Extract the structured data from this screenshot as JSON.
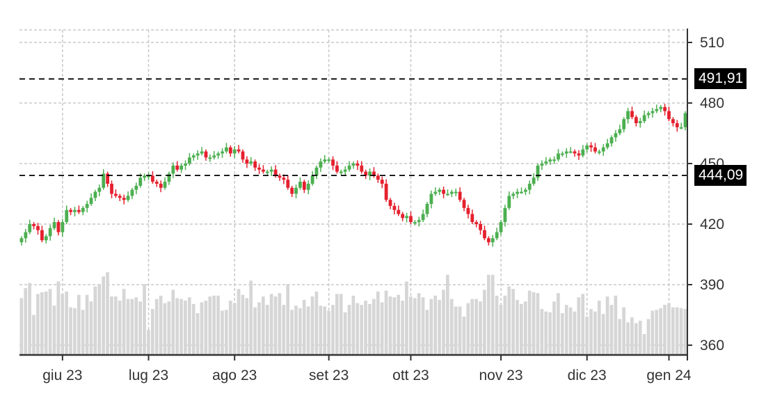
{
  "chart_data": {
    "type": "candlestick",
    "title": "",
    "xlabel": "",
    "ylabel": "",
    "ylim": [
      351,
      517
    ],
    "y_ticks": [
      360,
      390,
      420,
      450,
      480,
      510
    ],
    "x_ticks": [
      {
        "label": "giu 23",
        "index": 10
      },
      {
        "label": "lug 23",
        "index": 31
      },
      {
        "label": "ago 23",
        "index": 52
      },
      {
        "label": "set 23",
        "index": 75
      },
      {
        "label": "ott 23",
        "index": 95
      },
      {
        "label": "nov 23",
        "index": 117
      },
      {
        "label": "dic 23",
        "index": 138
      },
      {
        "label": "gen 24",
        "index": 158
      }
    ],
    "grid": true,
    "reference_lines": [
      {
        "value": 491.91,
        "label": "491,91",
        "style": "dashed",
        "color": "#000000"
      },
      {
        "value": 444.09,
        "label": "444,09",
        "style": "dashed",
        "color": "#000000"
      }
    ],
    "colors": {
      "up": "#4caf50",
      "down": "#e5202e",
      "volume": "#d6d6d6",
      "grid": "#c8c8c8",
      "axis": "#333333"
    },
    "closes": [
      413,
      416,
      420,
      419,
      417,
      412,
      414,
      418,
      421,
      416,
      421,
      427,
      426,
      427,
      426,
      428,
      430,
      433,
      436,
      438,
      445,
      440,
      435,
      434,
      433,
      432,
      434,
      437,
      439,
      443,
      444,
      444,
      441,
      440,
      438,
      441,
      445,
      449,
      447,
      449,
      450,
      453,
      454,
      455,
      456,
      453,
      453,
      454,
      455,
      456,
      458,
      455,
      457,
      456,
      452,
      450,
      451,
      448,
      447,
      446,
      446,
      447,
      444,
      443,
      442,
      438,
      435,
      438,
      441,
      437,
      440,
      444,
      448,
      451,
      452,
      452,
      449,
      446,
      446,
      447,
      449,
      450,
      449,
      446,
      444,
      446,
      444,
      442,
      440,
      432,
      429,
      427,
      425,
      423,
      424,
      421,
      421,
      422,
      425,
      430,
      435,
      436,
      437,
      435,
      435,
      436,
      436,
      432,
      428,
      425,
      421,
      420,
      417,
      413,
      411,
      413,
      416,
      421,
      428,
      434,
      435,
      436,
      436,
      437,
      440,
      443,
      449,
      450,
      451,
      452,
      452,
      455,
      455,
      456,
      456,
      455,
      454,
      457,
      459,
      458,
      456,
      456,
      458,
      460,
      463,
      465,
      467,
      472,
      476,
      473,
      470,
      471,
      474,
      475,
      476,
      477,
      478,
      476,
      472,
      470,
      468,
      468,
      475
    ],
    "volume_heights": [
      68,
      80,
      86,
      48,
      73,
      75,
      76,
      79,
      59,
      88,
      73,
      76,
      57,
      56,
      72,
      54,
      72,
      64,
      82,
      85,
      94,
      99,
      70,
      70,
      65,
      79,
      67,
      67,
      69,
      64,
      85,
      30,
      55,
      67,
      71,
      62,
      64,
      78,
      68,
      67,
      65,
      69,
      61,
      50,
      63,
      65,
      70,
      71,
      71,
      53,
      54,
      65,
      62,
      79,
      72,
      68,
      89,
      57,
      63,
      70,
      60,
      73,
      70,
      74,
      60,
      85,
      54,
      59,
      56,
      66,
      58,
      70,
      76,
      59,
      58,
      53,
      60,
      73,
      73,
      51,
      60,
      71,
      62,
      60,
      65,
      61,
      67,
      76,
      63,
      77,
      70,
      69,
      72,
      65,
      88,
      70,
      68,
      74,
      69,
      54,
      67,
      71,
      66,
      78,
      96,
      67,
      58,
      58,
      46,
      62,
      67,
      67,
      64,
      78,
      96,
      96,
      71,
      60,
      71,
      82,
      79,
      66,
      61,
      64,
      77,
      75,
      74,
      55,
      52,
      51,
      64,
      74,
      50,
      60,
      57,
      52,
      69,
      73,
      46,
      55,
      52,
      65,
      49,
      70,
      60,
      71,
      43,
      57,
      39,
      45,
      38,
      41,
      25,
      43,
      53,
      54,
      56,
      60,
      62,
      57,
      57,
      56,
      55
    ],
    "volume_axis_note": "volume bars share the lower panel; heights are relative (px)"
  },
  "axis": {
    "y_labels": [
      "510",
      "480",
      "450",
      "420",
      "390",
      "360"
    ],
    "x_labels": [
      "giu 23",
      "lug 23",
      "ago 23",
      "set 23",
      "ott 23",
      "nov 23",
      "dic 23",
      "gen 24"
    ]
  },
  "price_tags": {
    "upper": "491,91",
    "lower": "444,09"
  }
}
